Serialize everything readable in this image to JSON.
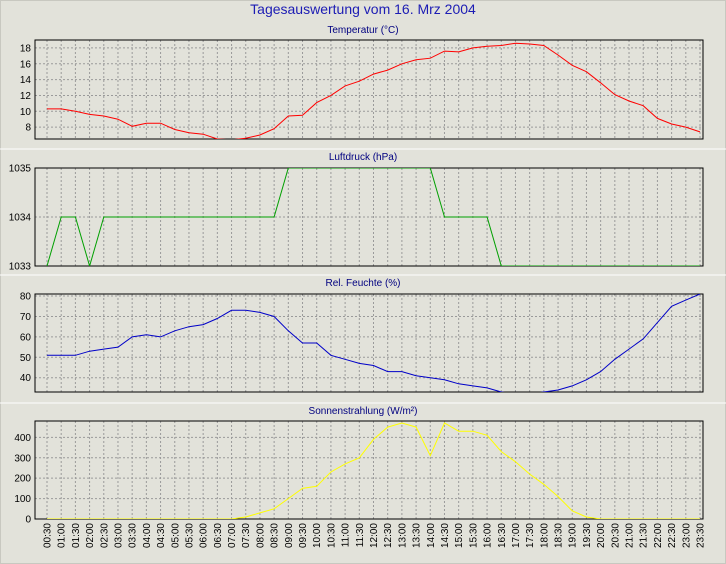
{
  "title": "Tagesauswertung vom 16. Mrz 2004",
  "colors": {
    "temperature": "#ff0000",
    "pressure": "#00a000",
    "humidity": "#0000c8",
    "radiation": "#ffff00",
    "panel_bg": "#e2e2da",
    "grid": "#9a9a9a"
  },
  "x_ticks": [
    "00:30",
    "01:00",
    "01:30",
    "02:00",
    "02:30",
    "03:00",
    "03:30",
    "04:00",
    "04:30",
    "05:00",
    "05:30",
    "06:00",
    "06:30",
    "07:00",
    "07:30",
    "08:00",
    "08:30",
    "09:00",
    "09:30",
    "10:00",
    "10:30",
    "11:00",
    "11:30",
    "12:00",
    "12:30",
    "13:00",
    "13:30",
    "14:00",
    "14:30",
    "15:00",
    "15:30",
    "16:00",
    "16:30",
    "17:00",
    "17:30",
    "18:00",
    "18:30",
    "19:00",
    "19:30",
    "20:00",
    "20:30",
    "21:00",
    "21:30",
    "22:00",
    "22:30",
    "23:00",
    "23:30"
  ],
  "chart_data": [
    {
      "type": "line",
      "title": "Temperatur (°C)",
      "ylim": [
        6.5,
        19
      ],
      "yticks": [
        "8",
        "10",
        "12",
        "14",
        "16",
        "18"
      ],
      "series": [
        {
          "values": [
            10.3,
            10.3,
            10.0,
            9.6,
            9.4,
            9.0,
            8.1,
            8.5,
            8.5,
            7.7,
            7.3,
            7.1,
            6.5,
            6.4,
            6.6,
            7.0,
            7.8,
            9.4,
            9.5,
            11.1,
            12.0,
            13.2,
            13.8,
            14.7,
            15.2,
            16.0,
            16.5,
            16.7,
            17.6,
            17.5,
            18.0,
            18.2,
            18.3,
            18.6,
            18.5,
            18.3,
            17.1,
            15.8,
            15.0,
            13.6,
            12.1,
            11.3,
            10.7,
            9.1,
            8.4,
            8.0,
            7.4
          ]
        }
      ]
    },
    {
      "type": "line",
      "title": "Luftdruck (hPa)",
      "ylim": [
        1033,
        1035
      ],
      "yticks": [
        "1033",
        "1034",
        "1035"
      ],
      "series": [
        {
          "values": [
            1033,
            1034,
            1034,
            1033,
            1034,
            1034,
            1034,
            1034,
            1034,
            1034,
            1034,
            1034,
            1034,
            1034,
            1034,
            1034,
            1034,
            1035,
            1035,
            1035,
            1035,
            1035,
            1035,
            1035,
            1035,
            1035,
            1035,
            1035,
            1034,
            1034,
            1034,
            1034,
            1033,
            1033,
            1033,
            1033,
            1033,
            1033,
            1033,
            1033,
            1033,
            1033,
            1033,
            1033,
            1033,
            1033,
            1033
          ]
        }
      ]
    },
    {
      "type": "line",
      "title": "Rel. Feuchte (%)",
      "ylim": [
        33,
        81
      ],
      "yticks": [
        "40",
        "50",
        "60",
        "70",
        "80"
      ],
      "series": [
        {
          "values": [
            51,
            51,
            51,
            53,
            54,
            55,
            60,
            61,
            60,
            63,
            65,
            66,
            69,
            73,
            73,
            72,
            70,
            63,
            57,
            57,
            51,
            49,
            47,
            46,
            43,
            43,
            41,
            40,
            39,
            37,
            36,
            35,
            33,
            32,
            32,
            33,
            34,
            36,
            39,
            43,
            49,
            54,
            59,
            67,
            75,
            78,
            81
          ]
        }
      ]
    },
    {
      "type": "line",
      "title": "Sonnenstrahlung (W/m²)",
      "ylim": [
        0,
        480
      ],
      "yticks": [
        "0",
        "100",
        "200",
        "300",
        "400"
      ],
      "series": [
        {
          "values": [
            0,
            0,
            0,
            0,
            0,
            0,
            0,
            0,
            0,
            0,
            0,
            0,
            0,
            0,
            10,
            30,
            50,
            100,
            150,
            160,
            230,
            270,
            300,
            390,
            450,
            470,
            450,
            310,
            470,
            430,
            430,
            410,
            330,
            280,
            220,
            170,
            110,
            40,
            10,
            0,
            0,
            0,
            0,
            0,
            0,
            0,
            0
          ]
        }
      ]
    }
  ]
}
